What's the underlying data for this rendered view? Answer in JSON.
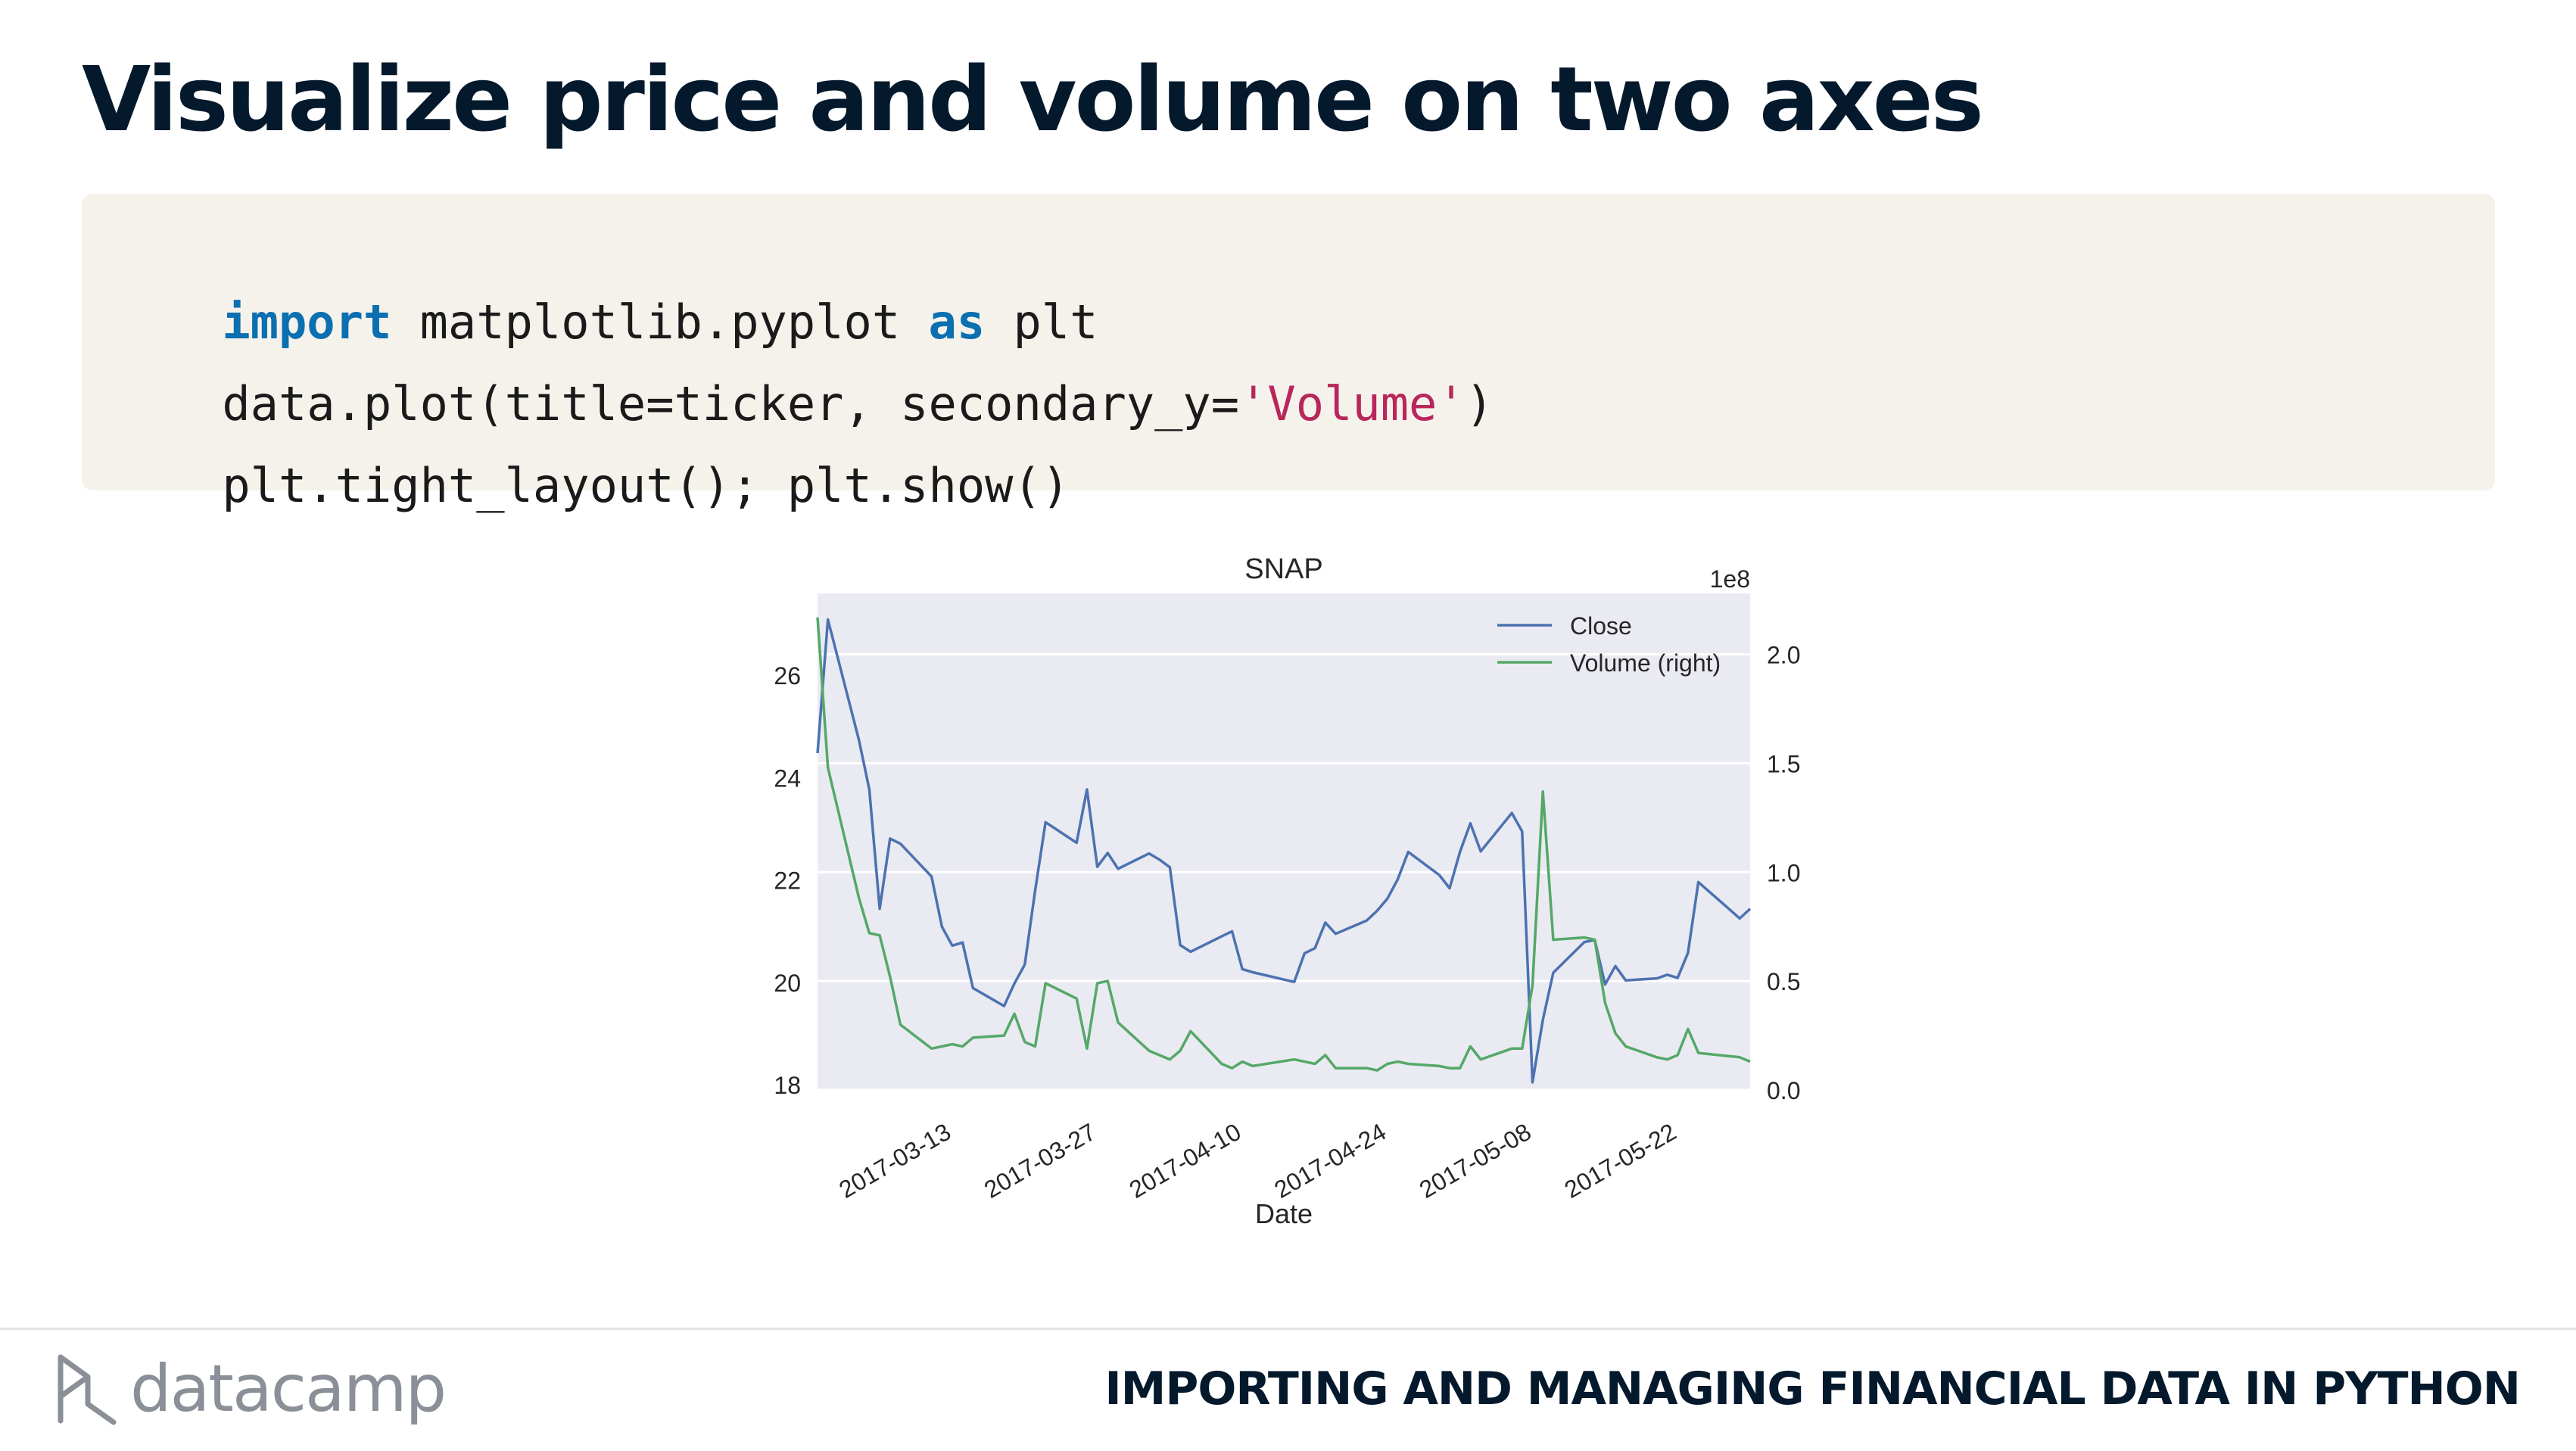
{
  "slide": {
    "title": "Visualize price and volume on two axes",
    "course_title": "IMPORTING AND MANAGING FINANCIAL DATA IN PYTHON",
    "brand_name": "datacamp",
    "brand_icon": "datacamp-logo-icon"
  },
  "code": {
    "line1": {
      "kw1": "import",
      "mid": " matplotlib.pyplot ",
      "kw2": "as",
      "end": " plt"
    },
    "line2": {
      "pre": "data.plot(title=ticker, secondary_y=",
      "str": "'Volume'",
      "post": ")"
    },
    "line3": {
      "text": "plt.tight_layout(); plt.show()"
    }
  },
  "chart_data": {
    "type": "line",
    "title": "SNAP",
    "xlabel": "Date",
    "ylabel": "",
    "y2_offset_label": "1e8",
    "xlim": [
      "2017-03-02",
      "2017-05-31"
    ],
    "ylim": [
      17.9,
      27.6
    ],
    "y2lim": [
      0.0,
      2.28
    ],
    "y_ticks": [
      18,
      20,
      22,
      24,
      26
    ],
    "y2_ticks": [
      0.0,
      0.5,
      1.0,
      1.5,
      2.0
    ],
    "y2_tick_labels": [
      "0.0",
      "0.5",
      "1.0",
      "1.5",
      "2.0"
    ],
    "x_ticks": [
      "2017-03-13",
      "2017-03-27",
      "2017-04-10",
      "2017-04-24",
      "2017-05-08",
      "2017-05-22"
    ],
    "grid": true,
    "legend_position": "top-right",
    "series_colors": [
      "#4c72b0",
      "#55a868"
    ],
    "x": [
      "2017-03-02",
      "2017-03-03",
      "2017-03-06",
      "2017-03-07",
      "2017-03-08",
      "2017-03-09",
      "2017-03-10",
      "2017-03-13",
      "2017-03-14",
      "2017-03-15",
      "2017-03-16",
      "2017-03-17",
      "2017-03-20",
      "2017-03-21",
      "2017-03-22",
      "2017-03-23",
      "2017-03-24",
      "2017-03-27",
      "2017-03-28",
      "2017-03-29",
      "2017-03-30",
      "2017-03-31",
      "2017-04-03",
      "2017-04-04",
      "2017-04-05",
      "2017-04-06",
      "2017-04-07",
      "2017-04-10",
      "2017-04-11",
      "2017-04-12",
      "2017-04-13",
      "2017-04-17",
      "2017-04-18",
      "2017-04-19",
      "2017-04-20",
      "2017-04-21",
      "2017-04-24",
      "2017-04-25",
      "2017-04-26",
      "2017-04-27",
      "2017-04-28",
      "2017-05-01",
      "2017-05-02",
      "2017-05-03",
      "2017-05-04",
      "2017-05-05",
      "2017-05-08",
      "2017-05-09",
      "2017-05-10",
      "2017-05-11",
      "2017-05-12",
      "2017-05-15",
      "2017-05-16",
      "2017-05-17",
      "2017-05-18",
      "2017-05-19",
      "2017-05-22",
      "2017-05-23",
      "2017-05-24",
      "2017-05-25",
      "2017-05-26",
      "2017-05-30",
      "2017-05-31"
    ],
    "series": [
      {
        "name": "Close",
        "axis": "left",
        "values": [
          24.48,
          27.09,
          24.73,
          23.77,
          21.44,
          22.81,
          22.71,
          22.07,
          21.09,
          20.72,
          20.78,
          19.89,
          19.54,
          19.98,
          20.35,
          21.8,
          23.13,
          22.73,
          23.77,
          22.26,
          22.53,
          22.22,
          22.52,
          22.4,
          22.25,
          20.73,
          20.6,
          20.9,
          21.0,
          20.26,
          20.2,
          20.01,
          20.57,
          20.67,
          21.17,
          20.95,
          21.21,
          21.4,
          21.64,
          22.02,
          22.55,
          22.1,
          21.84,
          22.55,
          23.11,
          22.56,
          23.31,
          22.95,
          18.05,
          19.27,
          20.19,
          20.79,
          20.83,
          19.96,
          20.32,
          20.04,
          20.08,
          20.15,
          20.09,
          20.58,
          21.96,
          21.25,
          21.44
        ]
      },
      {
        "name": "Volume (right)",
        "axis": "right",
        "values": [
          2.17,
          1.48,
          0.88,
          0.72,
          0.71,
          0.52,
          0.3,
          0.19,
          0.2,
          0.21,
          0.2,
          0.24,
          0.25,
          0.35,
          0.22,
          0.2,
          0.49,
          0.42,
          0.19,
          0.49,
          0.5,
          0.31,
          0.18,
          0.16,
          0.14,
          0.18,
          0.27,
          0.12,
          0.1,
          0.13,
          0.11,
          0.14,
          0.13,
          0.12,
          0.16,
          0.1,
          0.1,
          0.09,
          0.12,
          0.13,
          0.12,
          0.11,
          0.1,
          0.1,
          0.2,
          0.14,
          0.19,
          0.19,
          0.48,
          1.37,
          0.69,
          0.7,
          0.69,
          0.4,
          0.26,
          0.2,
          0.15,
          0.14,
          0.16,
          0.28,
          0.17,
          0.15,
          0.13
        ]
      }
    ]
  }
}
